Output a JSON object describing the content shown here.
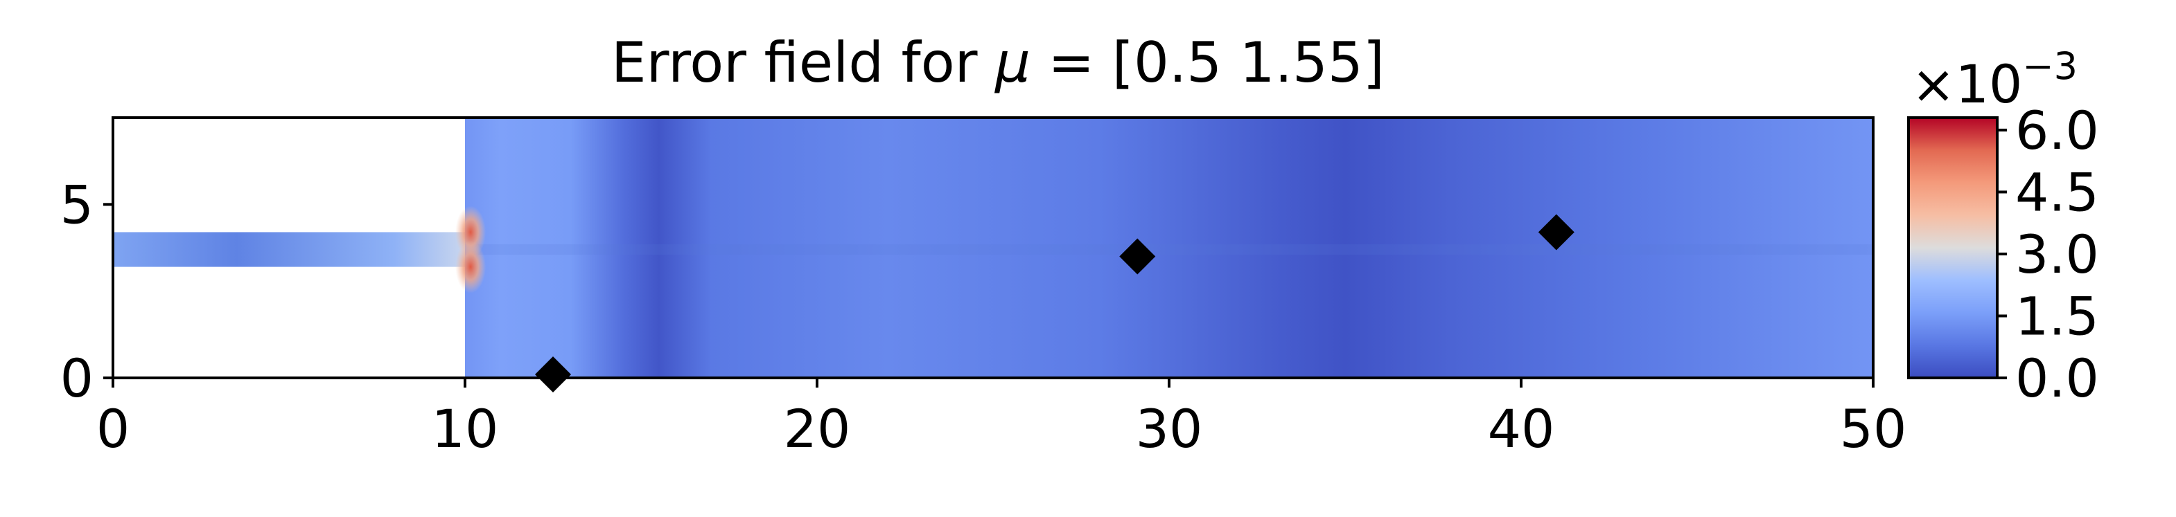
{
  "chart_data": {
    "type": "heatmap",
    "title": "Error field for μ = [0.5  1.55]",
    "title_prefix": "Error field for ",
    "title_mu": "μ",
    "title_suffix": " = [0.5  1.55]",
    "xlim": [
      0,
      50
    ],
    "ylim": [
      0,
      7.5
    ],
    "x_ticks": [
      0,
      10,
      20,
      30,
      40,
      50
    ],
    "x_tick_labels": [
      "0",
      "10",
      "20",
      "30",
      "40",
      "50"
    ],
    "y_ticks": [
      0,
      5
    ],
    "y_tick_labels": [
      "0",
      "5"
    ],
    "colormap": "coolwarm",
    "colorbar": {
      "range": [
        0.0,
        6.3
      ],
      "ticks": [
        0.0,
        1.5,
        3.0,
        4.5,
        6.0
      ],
      "tick_labels": [
        "0.0",
        "1.5",
        "3.0",
        "4.5",
        "6.0"
      ],
      "multiplier_base": "×10",
      "multiplier_exp": "−3"
    },
    "geometry": {
      "inlet_channel_x": [
        0,
        10
      ],
      "inlet_channel_y": [
        3.2,
        4.2
      ]
    },
    "markers": {
      "shape": "diamond",
      "color": "#000000",
      "points": [
        {
          "x": 12.5,
          "y": 0.1
        },
        {
          "x": 29.1,
          "y": 3.5
        },
        {
          "x": 41.0,
          "y": 4.2
        }
      ]
    },
    "error_profile": [
      {
        "x": 10.0,
        "level": 0.22
      },
      {
        "x": 11.0,
        "level": 0.26
      },
      {
        "x": 13.0,
        "level": 0.24
      },
      {
        "x": 14.5,
        "level": 0.1
      },
      {
        "x": 15.5,
        "level": 0.03
      },
      {
        "x": 17.0,
        "level": 0.13
      },
      {
        "x": 22.0,
        "level": 0.18
      },
      {
        "x": 28.0,
        "level": 0.14
      },
      {
        "x": 33.0,
        "level": 0.05
      },
      {
        "x": 35.0,
        "level": 0.02
      },
      {
        "x": 38.0,
        "level": 0.07
      },
      {
        "x": 43.0,
        "level": 0.13
      },
      {
        "x": 50.0,
        "level": 0.22
      }
    ]
  }
}
